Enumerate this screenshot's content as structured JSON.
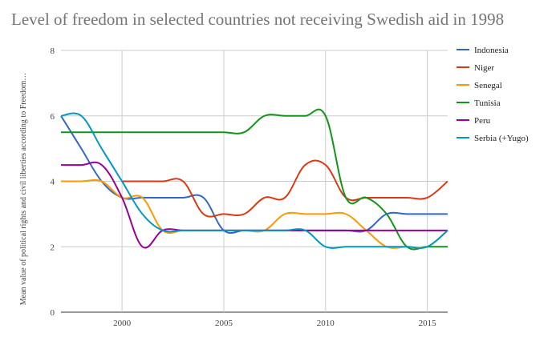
{
  "chart_data": {
    "type": "line",
    "title": "Level of freedom in selected countries not receiving Swedish aid in 1998",
    "xlabel": "",
    "ylabel": "Mean value of political rights and civil liberties according to Freedom…",
    "xlim": [
      1997,
      2016
    ],
    "ylim": [
      0,
      8
    ],
    "x_ticks": [
      2000,
      2005,
      2010,
      2015
    ],
    "y_ticks": [
      0,
      2,
      4,
      6,
      8
    ],
    "grid": true,
    "legend_position": "right",
    "x": [
      1997,
      1998,
      1999,
      2000,
      2001,
      2002,
      2003,
      2004,
      2005,
      2006,
      2007,
      2008,
      2009,
      2010,
      2011,
      2012,
      2013,
      2014,
      2015,
      2016
    ],
    "series": [
      {
        "name": "Indonesia",
        "color": "#3366cc",
        "values": [
          6,
          5,
          4,
          3.5,
          3.5,
          3.5,
          3.5,
          3.5,
          2.5,
          2.5,
          2.5,
          2.5,
          2.5,
          2.5,
          2.5,
          2.5,
          3,
          3,
          3,
          3
        ]
      },
      {
        "name": "Niger",
        "color": "#dc3912",
        "values": [
          null,
          null,
          null,
          4,
          4,
          4,
          4,
          3,
          3,
          3,
          3.5,
          3.5,
          4.5,
          4.5,
          3.5,
          3.5,
          3.5,
          3.5,
          3.5,
          4
        ]
      },
      {
        "name": "Senegal",
        "color": "#ff9900",
        "values": [
          4,
          4,
          4,
          3.5,
          3.5,
          2.5,
          2.5,
          2.5,
          2.5,
          2.5,
          2.5,
          3,
          3,
          3,
          3,
          2.5,
          2,
          2,
          2,
          2.5
        ]
      },
      {
        "name": "Tunisia",
        "color": "#109618",
        "values": [
          5.5,
          5.5,
          5.5,
          5.5,
          5.5,
          5.5,
          5.5,
          5.5,
          5.5,
          5.5,
          6,
          6,
          6,
          6,
          3.5,
          3.5,
          3,
          2,
          2,
          2
        ]
      },
      {
        "name": "Peru",
        "color": "#990099",
        "values": [
          4.5,
          4.5,
          4.5,
          3.5,
          2,
          2.5,
          2.5,
          2.5,
          2.5,
          2.5,
          2.5,
          2.5,
          2.5,
          2.5,
          2.5,
          2.5,
          2.5,
          2.5,
          2.5,
          2.5
        ]
      },
      {
        "name": "Serbia (+Yugo)",
        "color": "#0099c6",
        "values": [
          6,
          6,
          5,
          4,
          3,
          2.5,
          2.5,
          2.5,
          2.5,
          2.5,
          2.5,
          2.5,
          2.5,
          2,
          2,
          2,
          2,
          2,
          2,
          2.5
        ]
      }
    ]
  }
}
